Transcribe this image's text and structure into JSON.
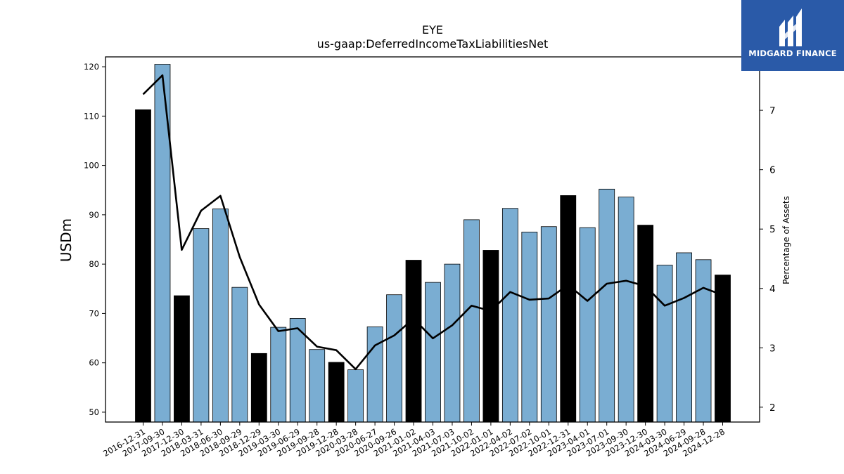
{
  "chart_data": {
    "type": "bar",
    "title": "EYE",
    "subtitle": "us-gaap:DeferredIncomeTaxLiabilitiesNet",
    "ylabel": "USDm",
    "ylabel_right": "Percentage of Assets",
    "ylim": [
      48,
      122
    ],
    "ylim_right": [
      1.75,
      7.9
    ],
    "yticks": [
      50,
      60,
      70,
      80,
      90,
      100,
      110,
      120
    ],
    "yticks_right": [
      2,
      3,
      4,
      5,
      6,
      7
    ],
    "categories": [
      "2016-12-31",
      "2017-09-30",
      "2017-12-30",
      "2018-03-31",
      "2018-06-30",
      "2018-09-29",
      "2018-12-29",
      "2019-03-30",
      "2019-06-29",
      "2019-09-28",
      "2019-12-28",
      "2020-03-28",
      "2020-06-27",
      "2020-09-26",
      "2021-01-02",
      "2021-04-03",
      "2021-07-03",
      "2021-10-02",
      "2022-01-01",
      "2022-04-02",
      "2022-07-02",
      "2022-10-01",
      "2022-12-31",
      "2023-04-01",
      "2023-07-01",
      "2023-09-30",
      "2023-12-30",
      "2024-03-30",
      "2024-06-29",
      "2024-09-28",
      "2024-12-28"
    ],
    "series": [
      {
        "type": "bar",
        "values": [
          111.3,
          120.5,
          73.6,
          87.2,
          91.2,
          75.3,
          61.9,
          67.2,
          69.0,
          62.7,
          60.1,
          58.6,
          67.3,
          73.8,
          80.8,
          76.3,
          80.0,
          89.0,
          82.8,
          91.3,
          86.5,
          87.6,
          93.9,
          87.4,
          95.2,
          93.6,
          87.9,
          79.8,
          82.3,
          80.9,
          77.8
        ],
        "highlight": [
          true,
          false,
          true,
          false,
          false,
          false,
          true,
          false,
          false,
          false,
          true,
          false,
          false,
          false,
          true,
          false,
          false,
          false,
          true,
          false,
          false,
          false,
          true,
          false,
          false,
          false,
          true,
          false,
          false,
          false,
          true
        ]
      },
      {
        "type": "line",
        "axis": "right",
        "values": [
          7.27,
          7.59,
          4.65,
          5.31,
          5.56,
          4.53,
          3.73,
          3.28,
          3.33,
          3.02,
          2.96,
          2.64,
          3.04,
          3.21,
          3.49,
          3.16,
          3.38,
          3.71,
          3.62,
          3.94,
          3.81,
          3.83,
          4.06,
          3.79,
          4.08,
          4.13,
          4.04,
          3.71,
          3.84,
          4.01,
          3.89
        ]
      }
    ],
    "colors": {
      "bar": "#7aadd2",
      "bar_highlight": "#000000",
      "line": "#000000"
    },
    "grid": false
  },
  "logo": {
    "text": "MIDGARD FINANCE",
    "background": "#2a5aa8"
  }
}
